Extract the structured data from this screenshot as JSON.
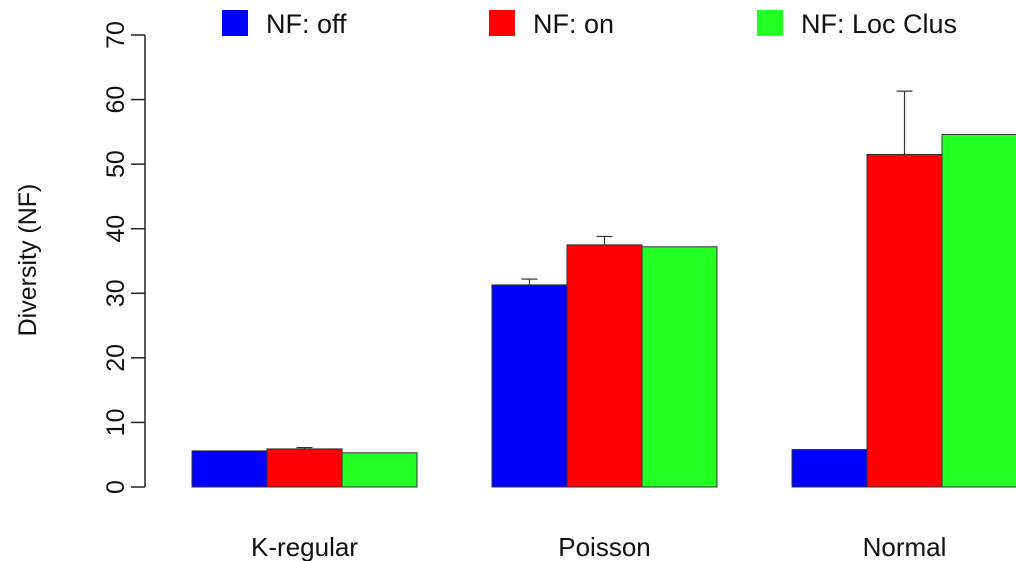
{
  "chart_data": {
    "type": "bar",
    "ylabel": "Diversity (NF)",
    "xlabel": "",
    "ylim": [
      0,
      70
    ],
    "yticks": [
      0,
      10,
      20,
      30,
      40,
      50,
      60,
      70
    ],
    "categories": [
      "K-regular",
      "Poisson",
      "Normal"
    ],
    "series": [
      {
        "name": "NF: off",
        "color": "#0000ff",
        "values": [
          5.6,
          31.3,
          5.8
        ],
        "error_upper": [
          5.6,
          32.2,
          5.8
        ]
      },
      {
        "name": "NF: on",
        "color": "#ff0000",
        "values": [
          5.9,
          37.5,
          51.5
        ],
        "error_upper": [
          6.1,
          38.8,
          61.3
        ]
      },
      {
        "name": "NF: Loc Clus",
        "color": "#22ff22",
        "values": [
          5.3,
          37.2,
          54.6
        ],
        "error_upper": [
          5.3,
          37.2,
          54.6
        ]
      }
    ],
    "legend_position": "top",
    "grid": false
  }
}
